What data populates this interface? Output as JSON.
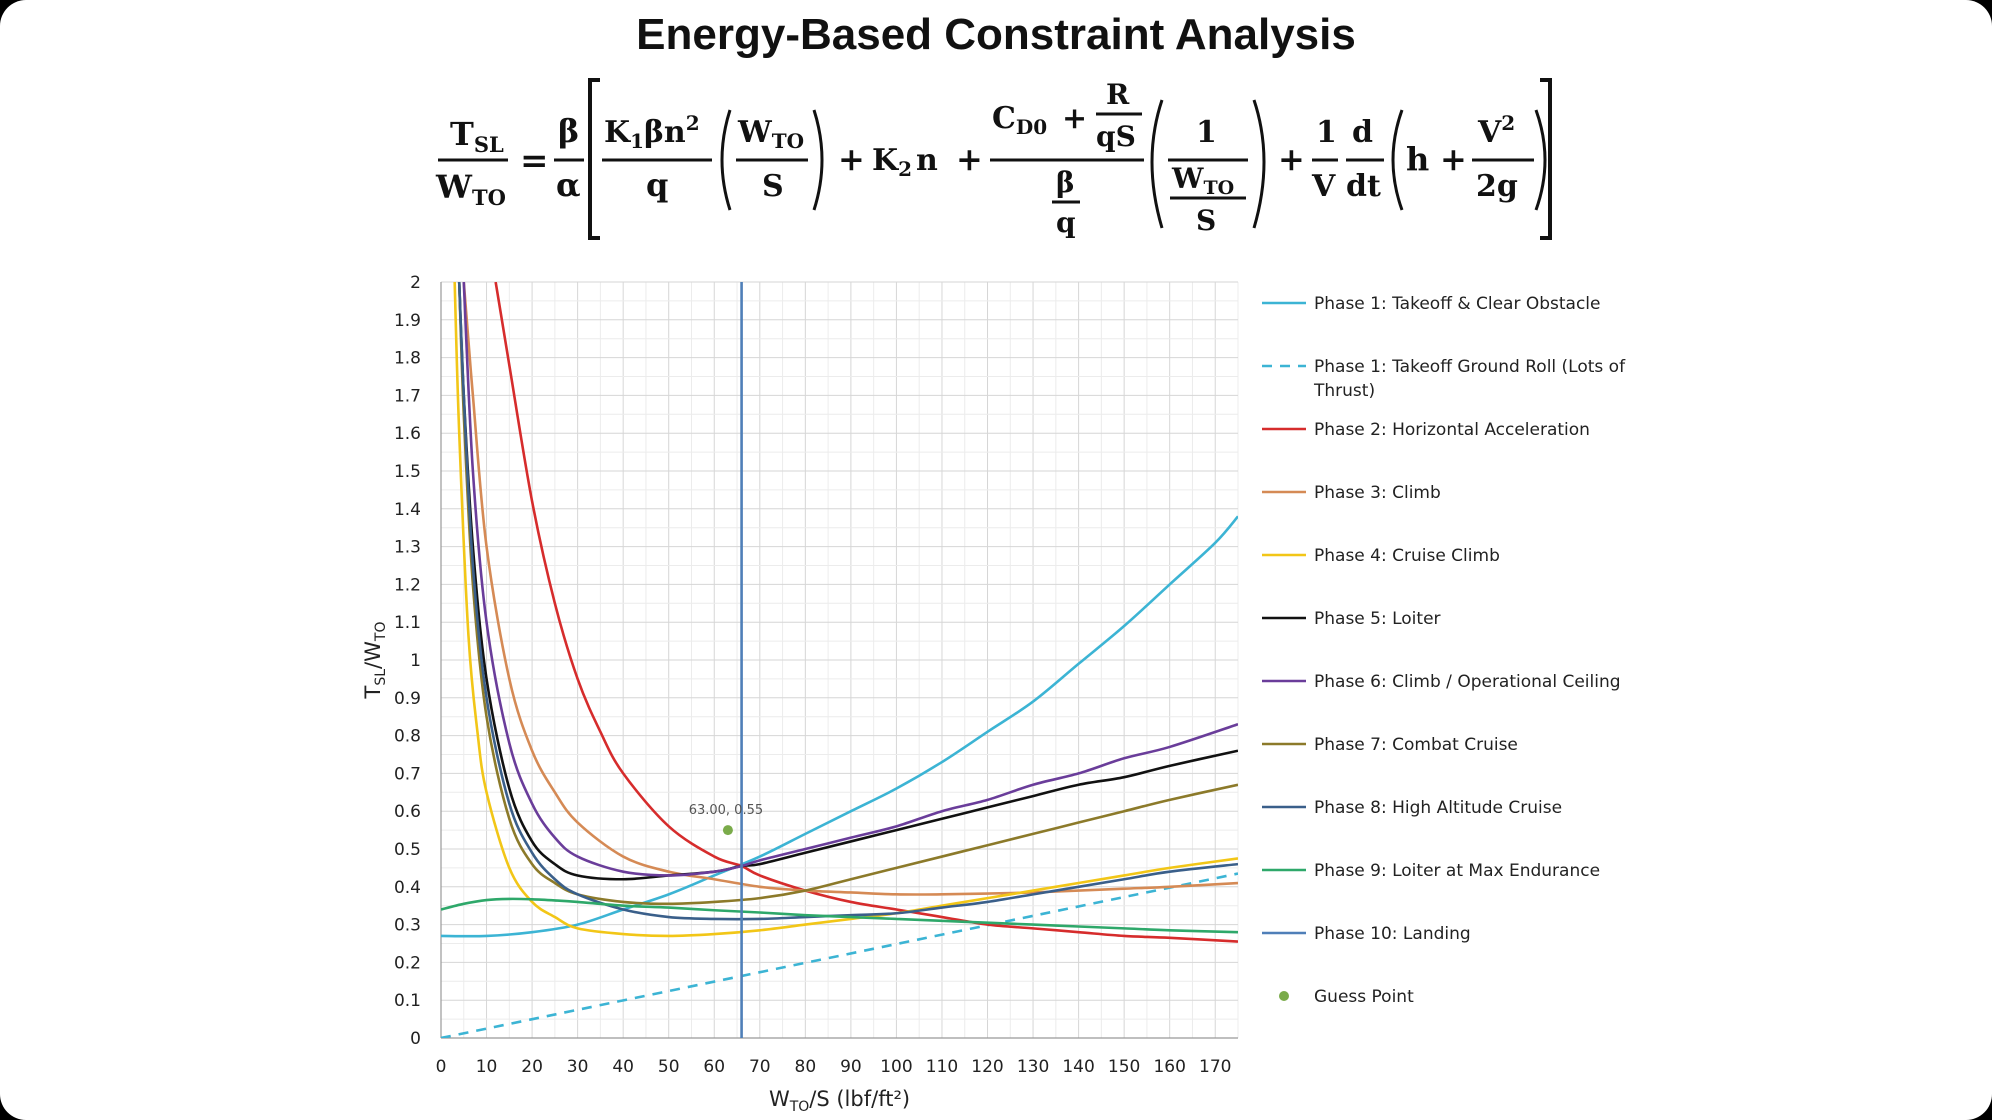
{
  "title": "Energy-Based Constraint Analysis",
  "equation": {
    "lhs_num": "T",
    "lhs_num_sub": "SL",
    "lhs_den": "W",
    "lhs_den_sub": "TO",
    "eq": "=",
    "beta": "β",
    "alpha": "α",
    "t1_num": "K",
    "t1_num_sub": "1",
    "t1_num_rest": "βn",
    "t1_sup": "2",
    "t1_den": "q",
    "ws_num": "W",
    "ws_num_sub": "TO",
    "ws_den": "S",
    "plus": "+",
    "k2": "K",
    "k2_sub": "2",
    "k2_n": "n",
    "cd0": "C",
    "cd0_sub": "D0",
    "r": "R",
    "qs": "qS",
    "bq_num": "β",
    "bq_den": "q",
    "one": "1",
    "one_v_num": "1",
    "one_v_den": "V",
    "d": "d",
    "dt": "dt",
    "h": "h",
    "v2": "V",
    "v2_sup": "2",
    "twog": "2g"
  },
  "chart_data": {
    "type": "line",
    "title": "",
    "xlabel": "W_TO/S (lbf/ft²)",
    "xlabel_parts": {
      "main": "W",
      "sub": "TO",
      "rest": "/S (lbf/ft²)"
    },
    "ylabel": "T_SL/W_TO",
    "ylabel_parts": {
      "main": "T",
      "sub": "SL",
      "mid": "/W",
      "sub2": "TO"
    },
    "xlim": [
      0,
      175
    ],
    "ylim": [
      0,
      2
    ],
    "xticks": [
      "0",
      "10",
      "20",
      "30",
      "40",
      "50",
      "60",
      "70",
      "80",
      "90",
      "100",
      "110",
      "120",
      "130",
      "140",
      "150",
      "160",
      "170"
    ],
    "yticks": [
      "0",
      "0.1",
      "0.2",
      "0.3",
      "0.4",
      "0.5",
      "0.6",
      "0.7",
      "0.8",
      "0.9",
      "1",
      "1.1",
      "1.2",
      "1.3",
      "1.4",
      "1.5",
      "1.6",
      "1.7",
      "1.8",
      "1.9",
      "2"
    ],
    "grid": true,
    "legend_position": "right",
    "series": [
      {
        "name": "Phase 1: Takeoff & Clear Obstacle",
        "color": "#3cb4d4",
        "dash": "solid",
        "x": [
          0,
          10,
          20,
          30,
          40,
          50,
          60,
          70,
          80,
          90,
          100,
          110,
          120,
          130,
          140,
          150,
          160,
          170,
          175
        ],
        "y": [
          0.27,
          0.27,
          0.28,
          0.3,
          0.34,
          0.38,
          0.43,
          0.48,
          0.54,
          0.6,
          0.66,
          0.73,
          0.81,
          0.89,
          0.99,
          1.09,
          1.2,
          1.31,
          1.38
        ]
      },
      {
        "name": "Phase 1: Takeoff Ground Roll (Lots of Thrust)",
        "color": "#3cb4d4",
        "dash": "dashed",
        "x": [
          0,
          175
        ],
        "y": [
          0,
          0.435
        ]
      },
      {
        "name": "Phase 2: Horizontal Acceleration",
        "color": "#d62c2c",
        "dash": "solid",
        "x": [
          12,
          15,
          20,
          25,
          30,
          35,
          40,
          50,
          60,
          66,
          70,
          80,
          90,
          100,
          110,
          120,
          130,
          140,
          150,
          160,
          175
        ],
        "y": [
          2.0,
          1.78,
          1.42,
          1.15,
          0.95,
          0.81,
          0.7,
          0.56,
          0.48,
          0.455,
          0.43,
          0.39,
          0.36,
          0.34,
          0.32,
          0.3,
          0.29,
          0.28,
          0.27,
          0.265,
          0.255
        ]
      },
      {
        "name": "Phase 3: Climb",
        "color": "#d58a55",
        "dash": "solid",
        "x": [
          5,
          7,
          10,
          15,
          20,
          25,
          30,
          40,
          50,
          60,
          70,
          80,
          90,
          100,
          110,
          120,
          130,
          140,
          150,
          160,
          175
        ],
        "y": [
          2.0,
          1.7,
          1.3,
          0.95,
          0.76,
          0.65,
          0.57,
          0.48,
          0.44,
          0.42,
          0.4,
          0.39,
          0.385,
          0.38,
          0.38,
          0.382,
          0.385,
          0.39,
          0.395,
          0.4,
          0.41
        ]
      },
      {
        "name": "Phase 4: Cruise Climb",
        "color": "#f2c617",
        "dash": "solid",
        "x": [
          3,
          4,
          6,
          8,
          10,
          15,
          20,
          25,
          30,
          40,
          50,
          60,
          70,
          80,
          90,
          100,
          110,
          120,
          130,
          140,
          150,
          160,
          175
        ],
        "y": [
          2.0,
          1.6,
          1.07,
          0.81,
          0.65,
          0.45,
          0.36,
          0.32,
          0.29,
          0.275,
          0.27,
          0.275,
          0.285,
          0.3,
          0.315,
          0.33,
          0.35,
          0.37,
          0.39,
          0.41,
          0.43,
          0.45,
          0.475
        ]
      },
      {
        "name": "Phase 5: Loiter",
        "color": "#111111",
        "dash": "solid",
        "x": [
          4,
          5,
          7,
          10,
          15,
          20,
          25,
          30,
          40,
          50,
          60,
          66,
          70,
          80,
          90,
          100,
          110,
          120,
          130,
          140,
          150,
          160,
          175
        ],
        "y": [
          2.0,
          1.7,
          1.3,
          0.95,
          0.66,
          0.52,
          0.46,
          0.43,
          0.42,
          0.43,
          0.44,
          0.455,
          0.46,
          0.49,
          0.52,
          0.55,
          0.58,
          0.61,
          0.64,
          0.67,
          0.69,
          0.72,
          0.76
        ]
      },
      {
        "name": "Phase 6: Climb / Operational Ceiling",
        "color": "#6a3d9a",
        "dash": "solid",
        "x": [
          5,
          7,
          10,
          15,
          20,
          25,
          30,
          40,
          50,
          60,
          66,
          70,
          80,
          90,
          100,
          110,
          120,
          130,
          140,
          150,
          160,
          175
        ],
        "y": [
          2.0,
          1.5,
          1.1,
          0.78,
          0.62,
          0.53,
          0.48,
          0.44,
          0.43,
          0.44,
          0.455,
          0.47,
          0.5,
          0.53,
          0.56,
          0.6,
          0.63,
          0.67,
          0.7,
          0.74,
          0.77,
          0.83
        ]
      },
      {
        "name": "Phase 7: Combat Cruise",
        "color": "#8c7a2a",
        "dash": "solid",
        "x": [
          4,
          5,
          7,
          10,
          15,
          20,
          25,
          30,
          40,
          50,
          60,
          70,
          80,
          90,
          100,
          110,
          120,
          130,
          140,
          150,
          160,
          175
        ],
        "y": [
          2.0,
          1.65,
          1.2,
          0.85,
          0.58,
          0.46,
          0.41,
          0.38,
          0.36,
          0.355,
          0.36,
          0.37,
          0.39,
          0.42,
          0.45,
          0.48,
          0.51,
          0.54,
          0.57,
          0.6,
          0.63,
          0.67
        ]
      },
      {
        "name": "Phase 8: High Altitude Cruise",
        "color": "#3a5f8a",
        "dash": "solid",
        "x": [
          4,
          5,
          7,
          10,
          15,
          20,
          25,
          30,
          40,
          50,
          60,
          70,
          80,
          90,
          100,
          110,
          120,
          130,
          140,
          150,
          160,
          175
        ],
        "y": [
          2.0,
          1.7,
          1.25,
          0.9,
          0.62,
          0.49,
          0.42,
          0.38,
          0.34,
          0.32,
          0.315,
          0.315,
          0.32,
          0.325,
          0.33,
          0.345,
          0.36,
          0.38,
          0.4,
          0.42,
          0.44,
          0.46
        ]
      },
      {
        "name": "Phase 9: Loiter at Max Endurance",
        "color": "#2ea86a",
        "dash": "solid",
        "x": [
          0,
          5,
          10,
          15,
          20,
          25,
          30,
          40,
          50,
          60,
          70,
          80,
          90,
          100,
          110,
          120,
          130,
          140,
          150,
          160,
          175
        ],
        "y": [
          0.34,
          0.355,
          0.365,
          0.368,
          0.367,
          0.364,
          0.36,
          0.35,
          0.345,
          0.338,
          0.332,
          0.325,
          0.32,
          0.315,
          0.31,
          0.305,
          0.3,
          0.295,
          0.29,
          0.285,
          0.28
        ]
      },
      {
        "name": "Phase 10: Landing",
        "color": "#4f7fb8",
        "dash": "solid",
        "x": [
          66,
          66
        ],
        "y": [
          0,
          2
        ]
      }
    ],
    "guess_point": {
      "name": "Guess Point",
      "color": "#7aab4a",
      "x": 63.0,
      "y": 0.55,
      "label": "63.00, 0.55"
    }
  }
}
